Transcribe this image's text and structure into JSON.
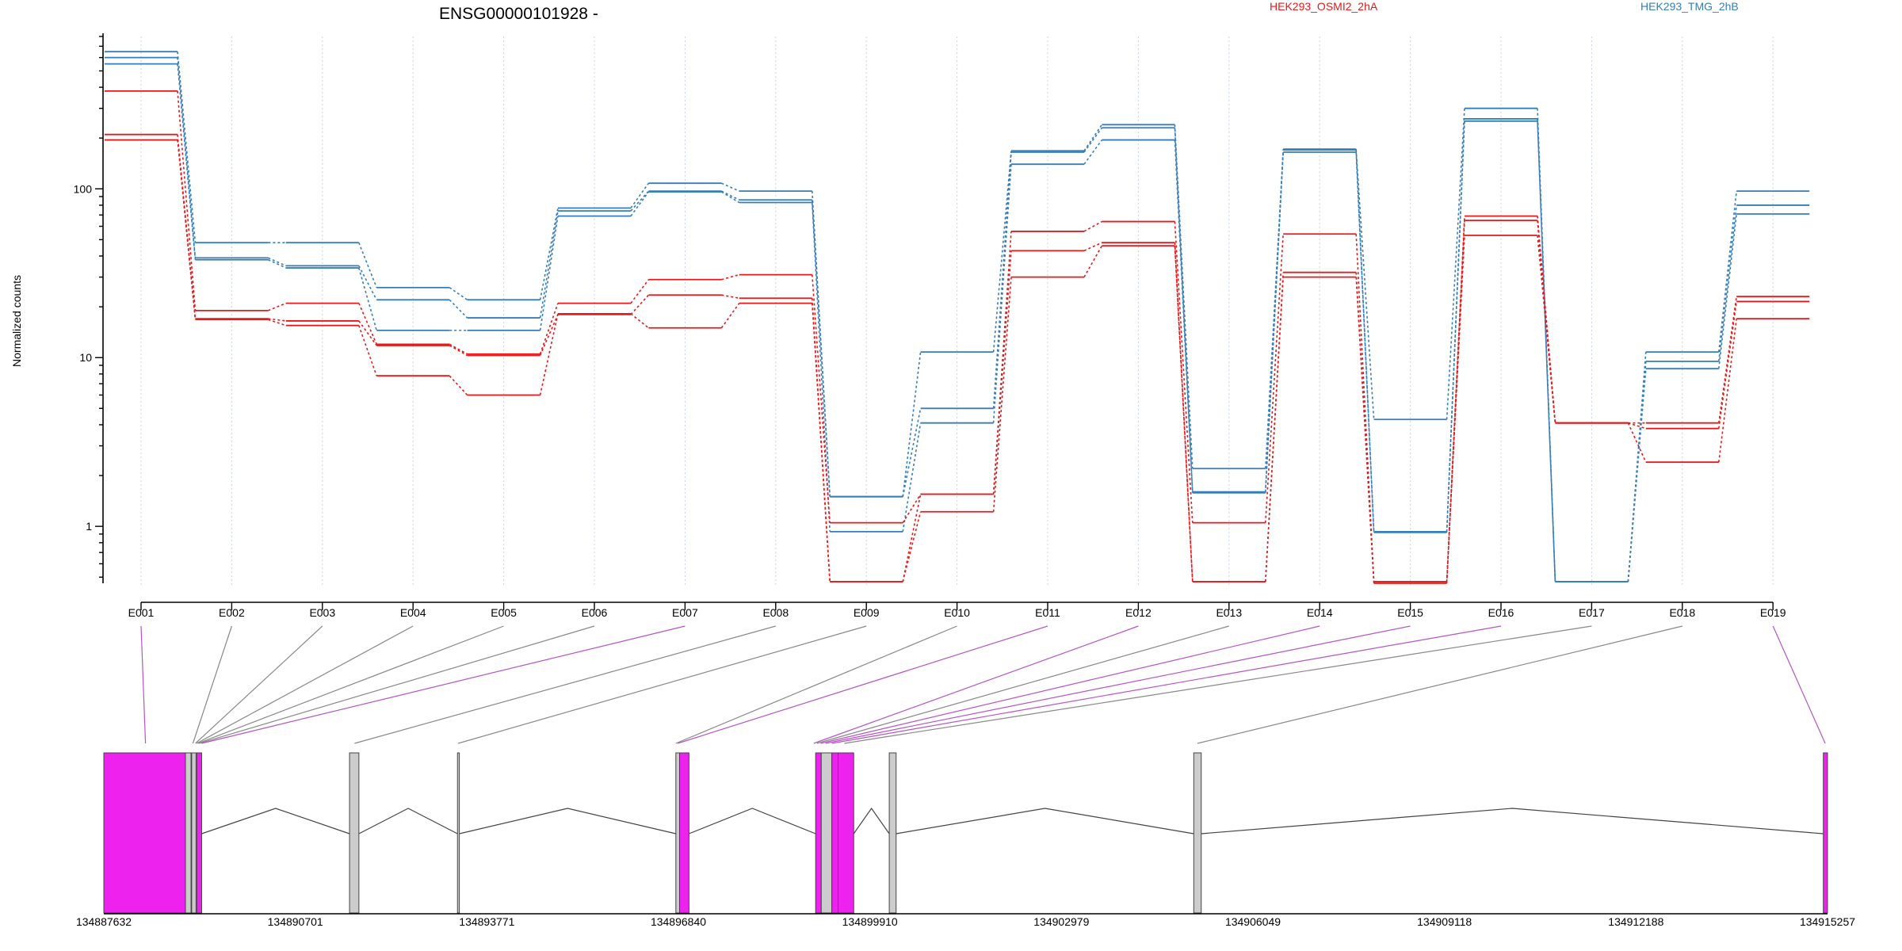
{
  "chart_data": {
    "type": "line",
    "title": "ENSG00000101928 -",
    "ylabel": "Normalized counts",
    "xlabel": "",
    "y_scale": "log",
    "ylim": [
      0.45,
      800
    ],
    "y_ticks": [
      1,
      10,
      100
    ],
    "y_tick_labels": [
      "1",
      "10",
      "100"
    ],
    "grid": true,
    "legend": "top-right",
    "conditions": [
      {
        "name": "HEK293_OSMI2_2hA",
        "color": "#e41a1c"
      },
      {
        "name": "HEK293_TMG_2hB",
        "color": "#377eb8"
      }
    ],
    "categories": [
      "E001",
      "E002",
      "E003",
      "E004",
      "E005",
      "E006",
      "E007",
      "E008",
      "E009",
      "E010",
      "E011",
      "E012",
      "E013",
      "E014",
      "E015",
      "E016",
      "E017",
      "E018",
      "E019"
    ],
    "series": [
      {
        "condition": 1,
        "values": [
          650,
          48,
          48,
          26,
          22,
          77,
          108,
          97,
          1.5,
          10.8,
          168,
          240,
          2.2,
          170,
          4.3,
          300,
          0.47,
          10.8,
          97
        ]
      },
      {
        "condition": 1,
        "values": [
          600,
          39,
          35,
          22,
          17.2,
          74,
          97,
          86,
          1.5,
          5,
          165,
          230,
          1.6,
          172,
          0.93,
          260,
          0.47,
          9.5,
          80
        ]
      },
      {
        "condition": 1,
        "values": [
          550,
          38,
          34,
          14.5,
          14.5,
          69,
          96,
          83,
          0.93,
          4.1,
          140,
          195,
          1.58,
          165,
          0.92,
          252,
          0.47,
          8.6,
          71
        ]
      },
      {
        "condition": 0,
        "values": [
          380,
          19,
          21,
          12,
          10.5,
          21,
          29,
          31,
          1.05,
          1.55,
          56,
          64,
          1.05,
          54,
          0.47,
          69,
          4.1,
          4.1,
          23
        ]
      },
      {
        "condition": 0,
        "values": [
          210,
          17,
          16.5,
          11.8,
          10.3,
          18,
          23.5,
          22.5,
          0.47,
          1.55,
          43,
          48,
          0.47,
          32,
          0.46,
          65,
          4.1,
          3.8,
          21.5
        ]
      },
      {
        "condition": 0,
        "values": [
          195,
          16.8,
          15.5,
          7.8,
          6,
          18.2,
          15,
          21,
          0.47,
          1.22,
          30,
          46,
          0.47,
          30,
          0.47,
          53,
          4.1,
          2.4,
          17
        ]
      }
    ],
    "gene_model": {
      "start": 134887632,
      "end": 134915257,
      "tick_labels": [
        "134887632",
        "134890701",
        "134893771",
        "134896840",
        "134899910",
        "134902979",
        "134906049",
        "134909118",
        "134912188",
        "134915257"
      ],
      "exon_starts": [
        134887632,
        134888940,
        134889040,
        134889120,
        134891570,
        134893300,
        134896800,
        134896860,
        134899040,
        134899130,
        134899300,
        134899400,
        134900220,
        134905100,
        134915190
      ],
      "exon_ends": [
        134888940,
        134889030,
        134889110,
        134889200,
        134891720,
        134893330,
        134896860,
        134897010,
        134899130,
        134899300,
        134899400,
        134899650,
        134900330,
        134905220,
        134915257
      ],
      "exon_highlight": [
        true,
        false,
        false,
        true,
        false,
        false,
        false,
        true,
        true,
        false,
        true,
        true,
        false,
        false,
        true
      ],
      "feature_ids": [
        "E001",
        "E002",
        "E003",
        "E004",
        "E005",
        "E006",
        "E007",
        "E008",
        "E009",
        "E010",
        "E011",
        "E012",
        "E013",
        "E014",
        "E015",
        "E016",
        "E017",
        "E018",
        "E019"
      ],
      "feature_positions": [
        134888300,
        134889060,
        134889100,
        134889120,
        134889140,
        134889160,
        134889200,
        134891650,
        134893310,
        134896800,
        134896830,
        134899010,
        134899060,
        134899120,
        134899200,
        134899300,
        134899500,
        134905160,
        134915220
      ],
      "feature_highlight": [
        true,
        false,
        false,
        false,
        false,
        false,
        true,
        false,
        false,
        false,
        true,
        true,
        false,
        true,
        true,
        true,
        false,
        false,
        true
      ]
    },
    "colors": {
      "highlight": "#ee22ee",
      "exon": "#cccccc",
      "link": "#888888",
      "link_highlight": "#b455c4",
      "grid": "#c9d3e6"
    }
  }
}
